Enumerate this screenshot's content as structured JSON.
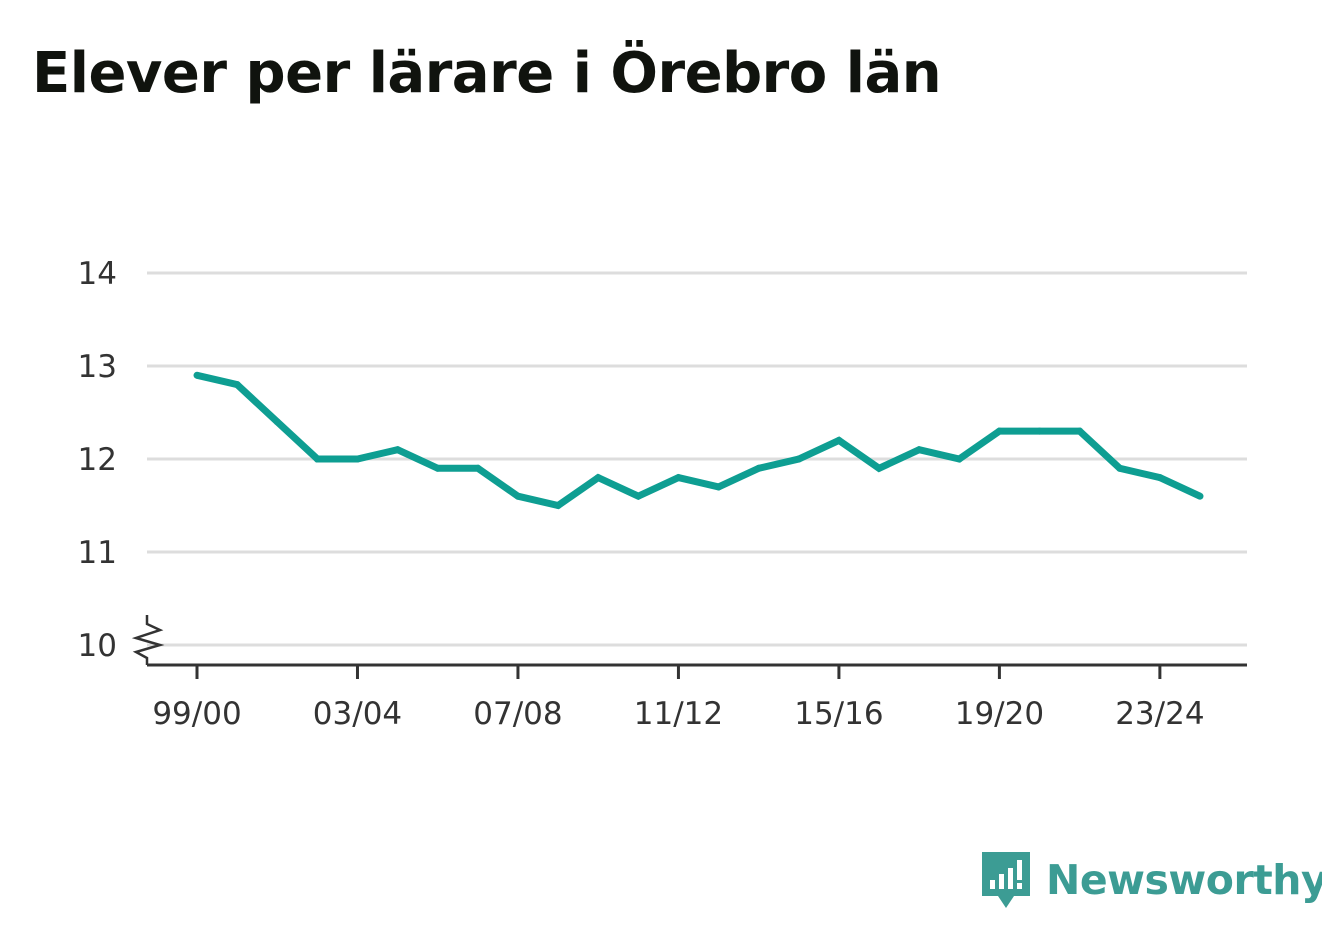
{
  "title": "Elever per lärare i Örebro län",
  "brand": {
    "name": "Newsworthy",
    "icon": "newsworthy-logo-icon",
    "color": "#3c9c94"
  },
  "colors": {
    "line": "#0e9e92",
    "grid": "#dddddd",
    "axis": "#333333",
    "text": "#333333"
  },
  "chart_data": {
    "type": "line",
    "title": "Elever per lärare i Örebro län",
    "xlabel": "",
    "ylabel": "",
    "x_tick_labels": [
      "99/00",
      "03/04",
      "07/08",
      "11/12",
      "15/16",
      "19/20",
      "23/24"
    ],
    "y_tick_labels": [
      "14",
      "13",
      "12",
      "11",
      "10"
    ],
    "ylim": [
      10,
      14
    ],
    "y_axis_break": true,
    "grid": "horizontal",
    "legend": "none",
    "x": [
      "99/00",
      "00/01",
      "01/02",
      "02/03",
      "03/04",
      "04/05",
      "05/06",
      "06/07",
      "07/08",
      "08/09",
      "09/10",
      "10/11",
      "11/12",
      "12/13",
      "13/14",
      "14/15",
      "15/16",
      "16/17",
      "17/18",
      "18/19",
      "19/20",
      "20/21",
      "21/22",
      "22/23",
      "23/24",
      "24/25"
    ],
    "series": [
      {
        "values": [
          12.9,
          12.8,
          12.4,
          12.0,
          12.0,
          12.1,
          11.9,
          11.9,
          11.6,
          11.5,
          11.8,
          11.6,
          11.8,
          11.7,
          11.9,
          12.0,
          12.2,
          11.9,
          12.1,
          12.0,
          12.3,
          12.3,
          12.3,
          11.9,
          11.8,
          11.6
        ]
      }
    ]
  }
}
